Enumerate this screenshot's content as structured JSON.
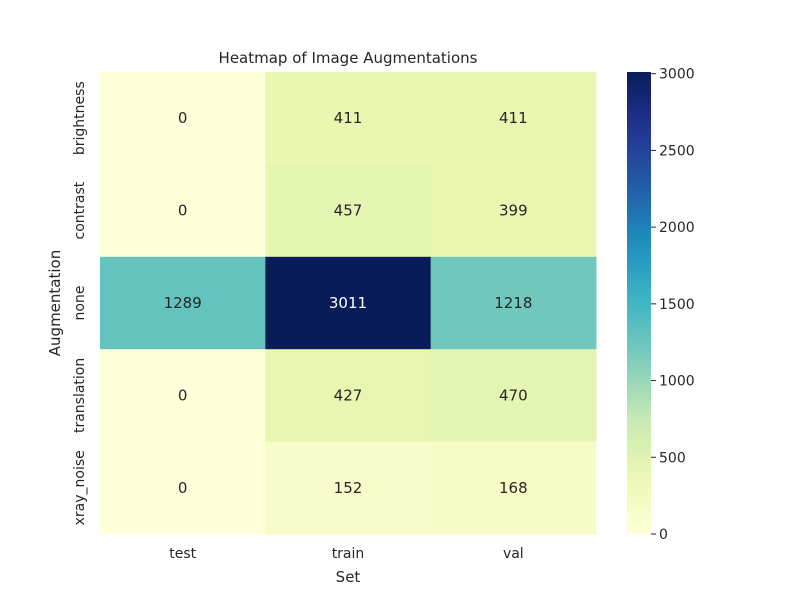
{
  "chart_data": {
    "type": "heatmap",
    "title": "Heatmap of Image Augmentations",
    "xlabel": "Set",
    "ylabel": "Augmentation",
    "x_categories": [
      "test",
      "train",
      "val"
    ],
    "y_categories": [
      "brightness",
      "contrast",
      "none",
      "translation",
      "xray_noise"
    ],
    "values": [
      [
        0,
        411,
        411
      ],
      [
        0,
        457,
        399
      ],
      [
        1289,
        3011,
        1218
      ],
      [
        0,
        427,
        470
      ],
      [
        0,
        152,
        168
      ]
    ],
    "colorbar": {
      "range": [
        0,
        3011
      ],
      "ticks": [
        0,
        500,
        1000,
        1500,
        2000,
        2500,
        3000
      ],
      "colormap": "YlGnBu"
    },
    "annotations": true,
    "grid": false
  }
}
